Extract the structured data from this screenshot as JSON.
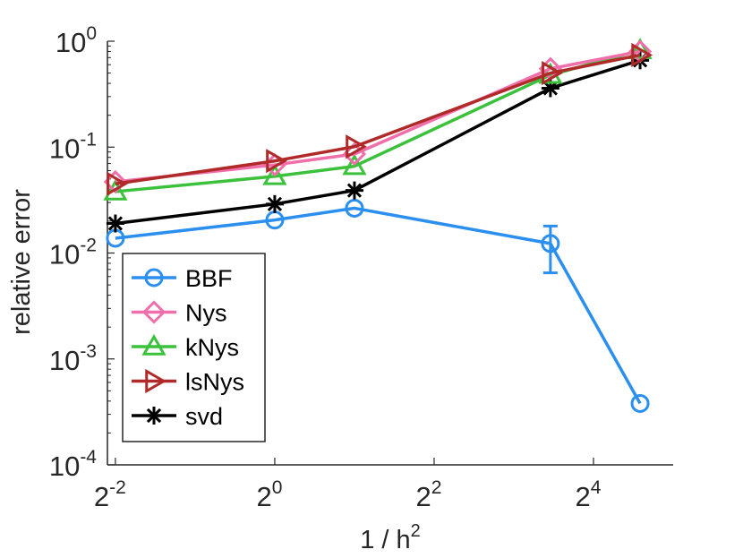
{
  "chart_data": {
    "type": "line",
    "title": "",
    "xlabel": "1 / h",
    "xlabel_exponent": "2",
    "ylabel": "relative error",
    "xscale": "log2",
    "yscale": "log10",
    "xlim_exp": [
      -2.1,
      5.0
    ],
    "ylim_exp": [
      -4,
      0
    ],
    "x_ticks": [
      {
        "base": "2",
        "exp": "-2",
        "value_exp": -2
      },
      {
        "base": "2",
        "exp": "0",
        "value_exp": 0
      },
      {
        "base": "2",
        "exp": "2",
        "value_exp": 2
      },
      {
        "base": "2",
        "exp": "4",
        "value_exp": 4
      }
    ],
    "y_ticks": [
      {
        "base": "10",
        "exp": "0",
        "value_exp": 0
      },
      {
        "base": "10",
        "exp": "-1",
        "value_exp": -1
      },
      {
        "base": "10",
        "exp": "-2",
        "value_exp": -2
      },
      {
        "base": "10",
        "exp": "-3",
        "value_exp": -3
      },
      {
        "base": "10",
        "exp": "-4",
        "value_exp": -4
      }
    ],
    "grid": false,
    "legend_position": "bottom-left",
    "series": [
      {
        "name": "BBF",
        "color": "#2b8ff0",
        "marker": "circle",
        "x": [
          0.25,
          1,
          2,
          11,
          24
        ],
        "y": [
          0.0138,
          0.0205,
          0.0265,
          0.0123,
          0.00038
        ],
        "error_bars": [
          null,
          null,
          null,
          [
            0.0065,
            0.018
          ],
          null
        ]
      },
      {
        "name": "Nys",
        "color": "#f06eaa",
        "marker": "diamond",
        "x": [
          0.25,
          1,
          2,
          11,
          24
        ],
        "y": [
          0.047,
          0.068,
          0.086,
          0.55,
          0.8
        ]
      },
      {
        "name": "kNys",
        "color": "#3cc13c",
        "marker": "triangle-up",
        "x": [
          0.25,
          1,
          2,
          11,
          24
        ],
        "y": [
          0.038,
          0.053,
          0.066,
          0.48,
          0.82
        ]
      },
      {
        "name": "lsNys",
        "color": "#b02a2a",
        "marker": "triangle-right",
        "x": [
          0.25,
          1,
          2,
          11,
          24
        ],
        "y": [
          0.045,
          0.074,
          0.101,
          0.5,
          0.74
        ]
      },
      {
        "name": "svd",
        "color": "#000000",
        "marker": "asterisk",
        "x": [
          0.25,
          1,
          2,
          11,
          24
        ],
        "y": [
          0.019,
          0.029,
          0.039,
          0.36,
          0.66
        ]
      }
    ]
  }
}
